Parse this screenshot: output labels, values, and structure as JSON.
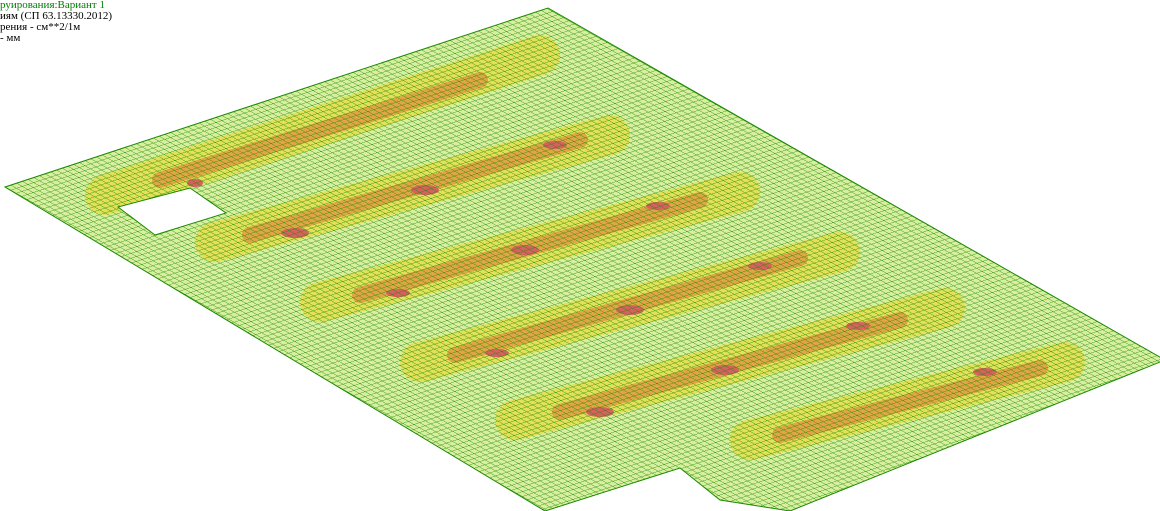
{
  "header": {
    "lines": [
      "руирования:Вариант 1",
      "иям (СП 63.13330.2012)",
      "рения - см**2/1м",
      "- мм"
    ]
  }
}
